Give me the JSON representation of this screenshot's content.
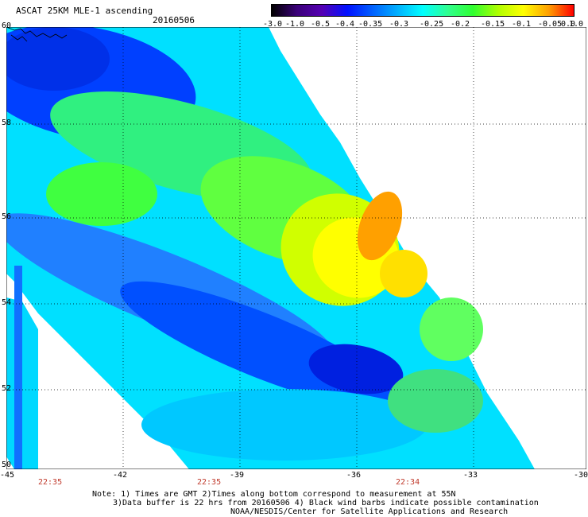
{
  "header": {
    "title": "ASCAT 25KM MLE-1 ascending",
    "date": "20160506"
  },
  "colorbar": {
    "labels": [
      "-3.0",
      "-1.0",
      "-0.5",
      "-0.4",
      "-0.35",
      "-0.3",
      "-0.25",
      "-0.2",
      "-0.15",
      "-0.1",
      "-0.05",
      "0.0",
      "1.0"
    ],
    "colors": [
      "#000000",
      "#3a0078",
      "#5500b4",
      "#0010ff",
      "#0060ff",
      "#00b0ff",
      "#00ffff",
      "#30ff90",
      "#30ff30",
      "#b0ff00",
      "#ffff00",
      "#ffa000",
      "#ff0000"
    ]
  },
  "map": {
    "lon_labels": [
      "-45",
      "-42",
      "-39",
      "-36",
      "-33",
      "-30"
    ],
    "lat_labels": [
      "60",
      "58",
      "56",
      "54",
      "52",
      "50"
    ],
    "time_labels": [
      "22:35",
      "22:35",
      "22:34"
    ],
    "grid": "dotted"
  },
  "footer": {
    "line1": "Note: 1) Times are GMT 2)Times along bottom correspond to measurement at 55N",
    "line2": "3)Data buffer is 22 hrs from 20160506 4) Black wind barbs indicate possible contamination",
    "line3": "NOAA/NESDIS/Center for Satellite Applications and Research"
  }
}
